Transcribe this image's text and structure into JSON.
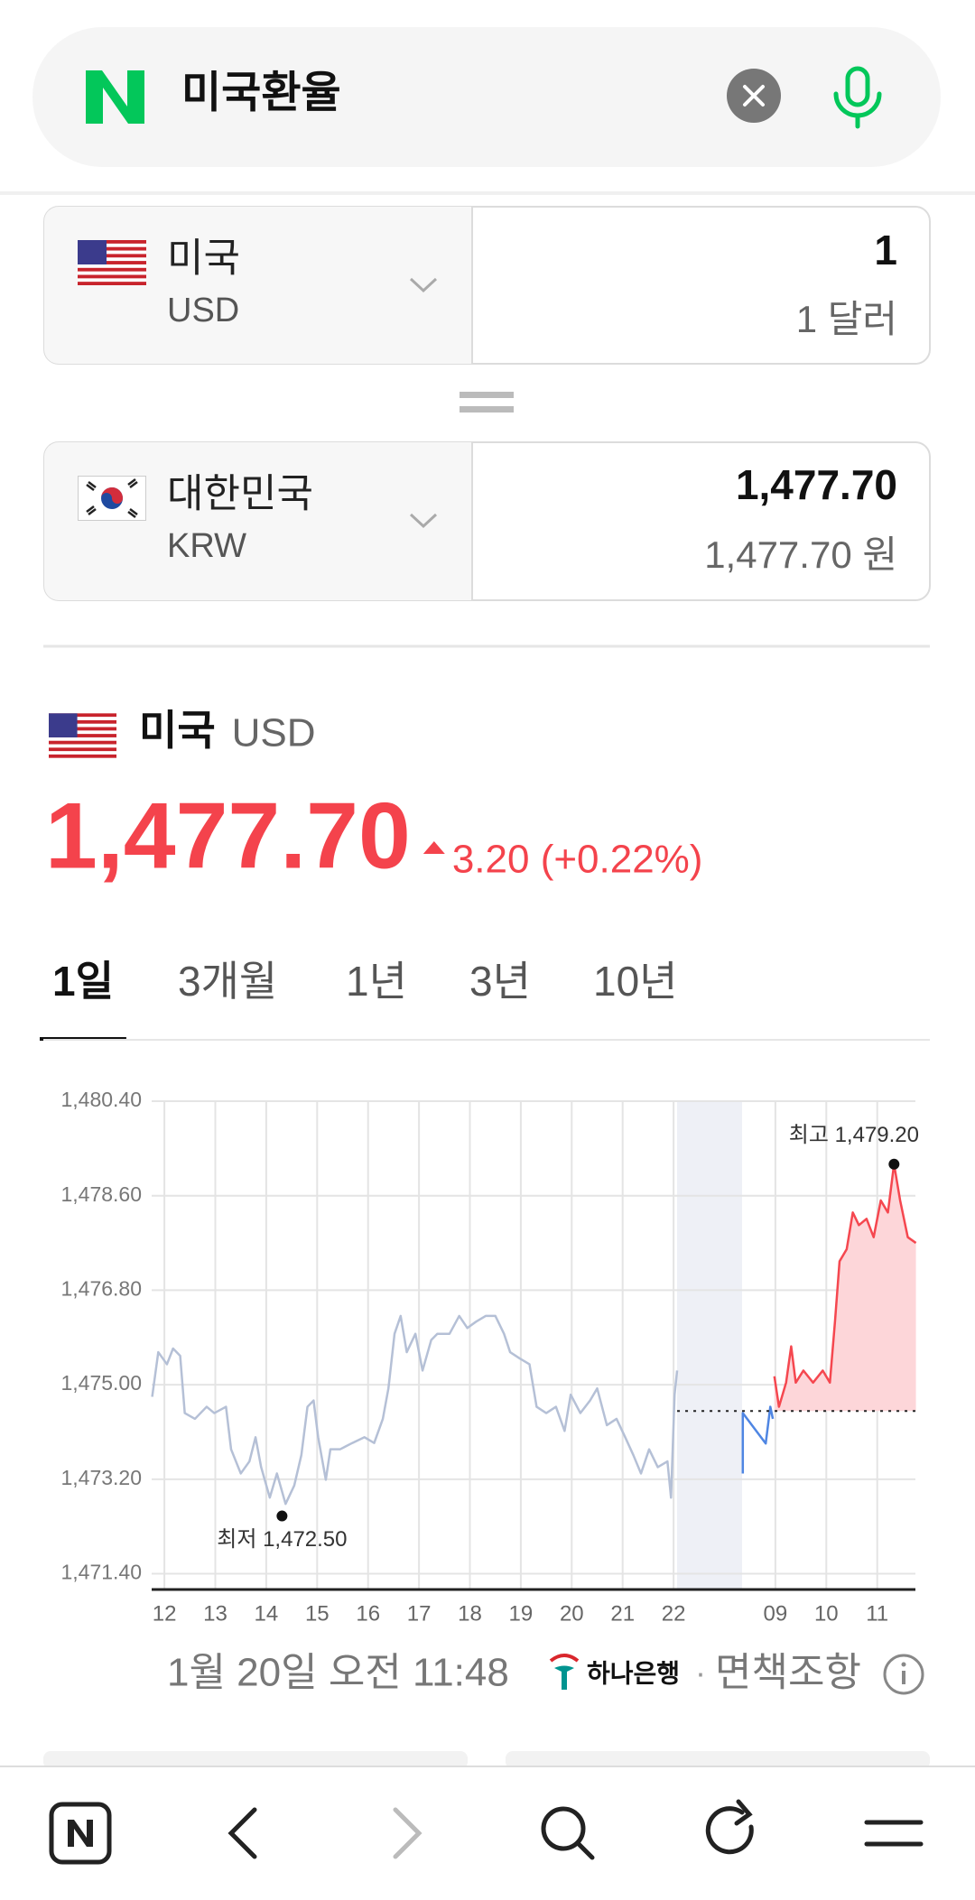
{
  "search": {
    "query": "미국환율"
  },
  "converter": [
    {
      "country": "미국",
      "code": "USD",
      "amount": "1",
      "amount_text": "1 달러"
    },
    {
      "country": "대한민국",
      "code": "KRW",
      "amount": "1,477.70",
      "amount_text": "1,477.70 원"
    }
  ],
  "summary": {
    "country": "미국",
    "code": "USD",
    "rate": "1,477.70",
    "change": "3.20 (+0.22%)"
  },
  "tabs": {
    "items": [
      "1일",
      "3개월",
      "1년",
      "3년",
      "10년"
    ],
    "active": 0
  },
  "chart_data": {
    "type": "line",
    "ylim": [
      1471.1,
      1480.4
    ],
    "yticks": [
      {
        "value": 1471.4,
        "label": "1,471.40"
      },
      {
        "value": 1473.2,
        "label": "1,473.20"
      },
      {
        "value": 1475,
        "label": "1,475.00"
      },
      {
        "value": 1476.8,
        "label": "1,476.80"
      },
      {
        "value": 1478.6,
        "label": "1,478.60"
      },
      {
        "value": 1480.4,
        "label": "1,480.40"
      }
    ],
    "xlim": [
      -0.25,
      14.75
    ],
    "xticks": [
      {
        "value": 0,
        "label": "12"
      },
      {
        "value": 1,
        "label": "13"
      },
      {
        "value": 2,
        "label": "14"
      },
      {
        "value": 3,
        "label": "15"
      },
      {
        "value": 4,
        "label": "16"
      },
      {
        "value": 5,
        "label": "17"
      },
      {
        "value": 6,
        "label": "18"
      },
      {
        "value": 7,
        "label": "19"
      },
      {
        "value": 8,
        "label": "20"
      },
      {
        "value": 9,
        "label": "21"
      },
      {
        "value": 10,
        "label": "22"
      },
      {
        "value": 12,
        "label": "09"
      },
      {
        "value": 13,
        "label": "10"
      },
      {
        "value": 14,
        "label": "11"
      }
    ],
    "grid": true,
    "reference_line": 1474.5,
    "series": [
      {
        "color": "#b5c0d6",
        "x": [
          -0.24,
          -0.12,
          0.05,
          0.17,
          0.31,
          0.4,
          0.6,
          0.83,
          0.98,
          1.21,
          1.31,
          1.5,
          1.67,
          1.79,
          1.9,
          2.07,
          2.21,
          2.38,
          2.55,
          2.69,
          2.81,
          2.93,
          3.02,
          3.17,
          3.26,
          3.45,
          3.69,
          3.93,
          4.12,
          4.29,
          4.4,
          4.52,
          4.64,
          4.76,
          4.93,
          5.07,
          5.24,
          5.36,
          5.6,
          5.79,
          5.95,
          6.12,
          6.31,
          6.5,
          6.67,
          6.79,
          6.98,
          7.17,
          7.31,
          7.5,
          7.69,
          7.86,
          7.98,
          8.17,
          8.36,
          8.5,
          8.69,
          8.88,
          9.05,
          9.21,
          9.36,
          9.52,
          9.69,
          9.88,
          9.95,
          10.02,
          10.07
        ],
        "values": [
          1474.77,
          1475.62,
          1475.39,
          1475.69,
          1475.55,
          1474.46,
          1474.35,
          1474.58,
          1474.46,
          1474.58,
          1473.77,
          1473.31,
          1473.54,
          1474.0,
          1473.43,
          1472.85,
          1473.31,
          1472.73,
          1473.08,
          1473.66,
          1474.58,
          1474.7,
          1474.0,
          1473.19,
          1473.77,
          1473.77,
          1473.89,
          1474.0,
          1473.89,
          1474.35,
          1474.93,
          1475.97,
          1476.31,
          1475.62,
          1475.97,
          1475.27,
          1475.85,
          1475.97,
          1475.97,
          1476.31,
          1476.08,
          1476.2,
          1476.31,
          1476.31,
          1475.97,
          1475.62,
          1475.5,
          1475.39,
          1474.58,
          1474.46,
          1474.58,
          1474.12,
          1474.81,
          1474.46,
          1474.7,
          1474.93,
          1474.23,
          1474.35,
          1474.0,
          1473.66,
          1473.31,
          1473.77,
          1473.43,
          1473.54,
          1472.85,
          1474.81,
          1475.27
        ]
      },
      {
        "color": "#4f86e3",
        "x": [
          11.36,
          11.36,
          11.81,
          11.9,
          11.95
        ],
        "values": [
          1473.31,
          1474.46,
          1473.88,
          1474.58,
          1474.35
        ]
      },
      {
        "color": "#f5474f",
        "area_color": "#fdd6d9",
        "x": [
          11.98,
          12.07,
          12.21,
          12.31,
          12.4,
          12.55,
          12.74,
          12.93,
          13.07,
          13.17,
          13.26,
          13.4,
          13.52,
          13.64,
          13.79,
          13.93,
          14.07,
          14.21,
          14.33,
          14.45,
          14.6,
          14.76
        ],
        "values": [
          1475.16,
          1474.58,
          1475.04,
          1475.73,
          1475.04,
          1475.27,
          1475.04,
          1475.27,
          1475.04,
          1476.2,
          1477.35,
          1477.58,
          1478.28,
          1478.04,
          1478.16,
          1477.81,
          1478.51,
          1478.28,
          1479.2,
          1478.51,
          1477.81,
          1477.7
        ]
      }
    ],
    "annotations": [
      {
        "label": "최저 1,472.50",
        "x": 2.31,
        "y": 1472.5
      },
      {
        "label": "최고 1,479.20",
        "x": 14.33,
        "y": 1479.2
      }
    ]
  },
  "footer": {
    "timestamp": "1월 20일 오전 11:48",
    "bank": "하나은행",
    "separator": "·",
    "disclaimer": "면책조항"
  }
}
